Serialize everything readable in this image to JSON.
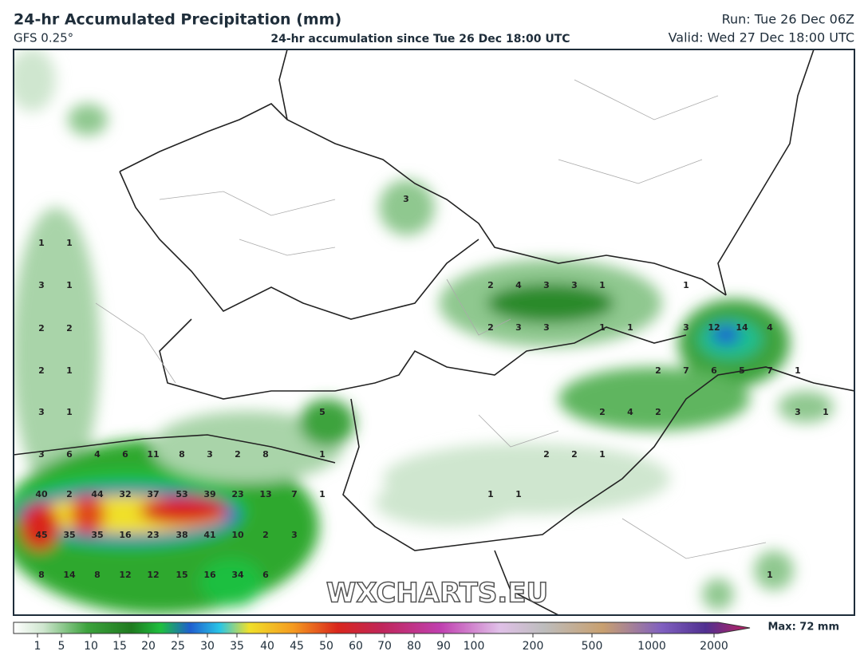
{
  "header": {
    "title": "24-hr Accumulated Precipitation (mm)",
    "model": "GFS 0.25°",
    "subtitle": "24-hr accumulation since Tue 26 Dec 18:00 UTC",
    "run": "Run: Tue 26 Dec 06Z",
    "valid": "Valid: Wed 27 Dec 18:00 UTC"
  },
  "map": {
    "labels": [
      1,
      1,
      3,
      1,
      2,
      2,
      2,
      1,
      3,
      1,
      3,
      6,
      4,
      6,
      11,
      8,
      3,
      2,
      8,
      1,
      5,
      40,
      2,
      44,
      32,
      37,
      53,
      39,
      23,
      13,
      7,
      1,
      45,
      35,
      35,
      16,
      23,
      38,
      41,
      10,
      2,
      3,
      8,
      14,
      8,
      12,
      12,
      15,
      16,
      34,
      6,
      3,
      2,
      4,
      3,
      3,
      1,
      1,
      2,
      3,
      3,
      1,
      1,
      3,
      12,
      14,
      4,
      2,
      7,
      6,
      5,
      7,
      1,
      2,
      4,
      2,
      3,
      1,
      2,
      2,
      1,
      1,
      1,
      1
    ],
    "watermark": "WXCHARTS.EU"
  },
  "colorbar": {
    "ticks": [
      1,
      5,
      10,
      15,
      20,
      25,
      30,
      35,
      40,
      45,
      50,
      60,
      70,
      80,
      90,
      100,
      200,
      500,
      1000,
      2000
    ],
    "max": "Max: 72 mm"
  }
}
